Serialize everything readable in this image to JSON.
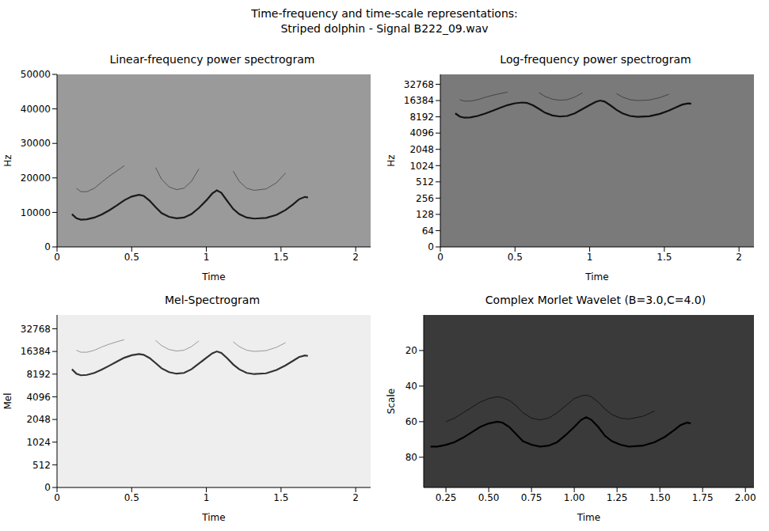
{
  "title": "Time-frequency and time-scale representations:",
  "subtitle": "Striped dolphin - Signal B222_09.wav",
  "chart_data": [
    {
      "type": "line",
      "title": "Linear-frequency power spectrogram",
      "x_label": "Time",
      "y_label": "Hz",
      "x": [
        0.1,
        0.13,
        0.16,
        0.2,
        0.25,
        0.3,
        0.35,
        0.4,
        0.45,
        0.5,
        0.55,
        0.58,
        0.62,
        0.66,
        0.7,
        0.75,
        0.8,
        0.85,
        0.9,
        0.95,
        1.0,
        1.04,
        1.07,
        1.1,
        1.14,
        1.18,
        1.22,
        1.27,
        1.32,
        1.4,
        1.47,
        1.53,
        1.58,
        1.62,
        1.66,
        1.68
      ],
      "series": [
        {
          "color": "#1a1a1a",
          "values": [
            9500,
            8300,
            7900,
            8000,
            8500,
            9400,
            10600,
            12000,
            13500,
            14600,
            15100,
            14800,
            13400,
            11500,
            9800,
            8700,
            8300,
            8500,
            9500,
            11300,
            13500,
            15500,
            16400,
            15700,
            13300,
            11000,
            9500,
            8500,
            8200,
            8400,
            9300,
            10700,
            12300,
            13800,
            14500,
            14300
          ]
        },
        {
          "color": "#555555",
          "values": [
            null,
            17000,
            16000,
            16000,
            17000,
            18800,
            20500,
            22000,
            23500,
            null,
            null,
            null,
            null,
            23000,
            19600,
            17400,
            16600,
            17000,
            19000,
            22600,
            null,
            null,
            null,
            null,
            null,
            22000,
            19000,
            17000,
            16400,
            16800,
            18600,
            21400,
            null,
            null,
            null,
            null
          ]
        }
      ],
      "xlim": [
        0,
        2.1
      ],
      "ylim": [
        0,
        50000
      ],
      "xticks": [
        0,
        0.5,
        1,
        1.5,
        2
      ],
      "yticks": [
        0,
        10000,
        20000,
        30000,
        40000,
        50000
      ]
    },
    {
      "type": "line",
      "title": "Log-frequency power spectrogram",
      "x_label": "Time",
      "y_label": "Hz",
      "log": "y",
      "x": [
        0.1,
        0.13,
        0.16,
        0.2,
        0.25,
        0.3,
        0.35,
        0.4,
        0.45,
        0.5,
        0.55,
        0.58,
        0.62,
        0.66,
        0.7,
        0.75,
        0.8,
        0.85,
        0.9,
        0.95,
        1.0,
        1.04,
        1.07,
        1.1,
        1.14,
        1.18,
        1.22,
        1.27,
        1.32,
        1.4,
        1.47,
        1.53,
        1.58,
        1.62,
        1.66,
        1.68
      ],
      "series": [
        {
          "color": "#111111",
          "values": [
            9500,
            8300,
            7900,
            8000,
            8500,
            9400,
            10600,
            12000,
            13500,
            14600,
            15100,
            14800,
            13400,
            11500,
            9800,
            8700,
            8300,
            8500,
            9500,
            11300,
            13500,
            15500,
            16400,
            15700,
            13300,
            11000,
            9500,
            8500,
            8200,
            8400,
            9300,
            10700,
            12300,
            13800,
            14500,
            14300
          ]
        },
        {
          "color": "#444444",
          "values": [
            null,
            17000,
            16000,
            16000,
            17000,
            18800,
            20500,
            22000,
            23500,
            null,
            null,
            null,
            null,
            23000,
            19600,
            17400,
            16600,
            17000,
            19000,
            22600,
            null,
            null,
            null,
            null,
            null,
            22000,
            19000,
            17000,
            16400,
            16800,
            18600,
            21400,
            null,
            null,
            null,
            null
          ]
        }
      ],
      "xlim": [
        0,
        2.1
      ],
      "ylim": [
        0,
        50000
      ],
      "xticks": [
        0,
        0.5,
        1,
        1.5,
        2
      ],
      "yticks": [
        0,
        64,
        128,
        256,
        512,
        1024,
        2048,
        4096,
        8192,
        16384,
        32768
      ]
    },
    {
      "type": "line",
      "title": "Mel-Spectrogram",
      "x_label": "Time",
      "y_label": "Mel",
      "log": "y",
      "x": [
        0.1,
        0.13,
        0.16,
        0.2,
        0.25,
        0.3,
        0.35,
        0.4,
        0.45,
        0.5,
        0.55,
        0.58,
        0.62,
        0.66,
        0.7,
        0.75,
        0.8,
        0.85,
        0.9,
        0.95,
        1.0,
        1.04,
        1.07,
        1.1,
        1.14,
        1.18,
        1.22,
        1.27,
        1.32,
        1.4,
        1.47,
        1.53,
        1.58,
        1.62,
        1.66,
        1.68
      ],
      "series": [
        {
          "color": "#333333",
          "values": [
            9500,
            8300,
            7900,
            8000,
            8500,
            9400,
            10600,
            12000,
            13500,
            14600,
            15100,
            14800,
            13400,
            11500,
            9800,
            8700,
            8300,
            8500,
            9500,
            11300,
            13500,
            15500,
            16400,
            15700,
            13300,
            11000,
            9500,
            8500,
            8200,
            8400,
            9300,
            10700,
            12300,
            13800,
            14500,
            14300
          ]
        },
        {
          "color": "#999999",
          "values": [
            null,
            17000,
            16000,
            16000,
            17000,
            18800,
            20500,
            22000,
            23500,
            null,
            null,
            null,
            null,
            23000,
            19600,
            17400,
            16600,
            17000,
            19000,
            22600,
            null,
            null,
            null,
            null,
            null,
            22000,
            19000,
            17000,
            16400,
            16800,
            18600,
            21400,
            null,
            null,
            null,
            null
          ]
        }
      ],
      "xlim": [
        0,
        2.1
      ],
      "ylim": [
        0,
        50000
      ],
      "xticks": [
        0,
        0.5,
        1,
        1.5,
        2
      ],
      "yticks": [
        0,
        512,
        1024,
        2048,
        4096,
        8192,
        16384,
        32768
      ]
    },
    {
      "type": "line",
      "title": "Complex Morlet Wavelet (B=3.0,C=4.0)",
      "x_label": "Time",
      "y_label": "Scale",
      "x": [
        0.1,
        0.13,
        0.16,
        0.2,
        0.25,
        0.3,
        0.35,
        0.4,
        0.45,
        0.5,
        0.55,
        0.58,
        0.62,
        0.66,
        0.7,
        0.75,
        0.8,
        0.85,
        0.9,
        0.95,
        1.0,
        1.04,
        1.07,
        1.1,
        1.14,
        1.18,
        1.22,
        1.27,
        1.32,
        1.4,
        1.47,
        1.53,
        1.58,
        1.62,
        1.66,
        1.68
      ],
      "series": [
        {
          "color": "#000000",
          "values": [
            null,
            null,
            74,
            74,
            73,
            71.5,
            69,
            66,
            63,
            61,
            60,
            60.5,
            63,
            67,
            71,
            73,
            74,
            73.5,
            71.5,
            67.5,
            63,
            59,
            57.5,
            59,
            63,
            68,
            71,
            73,
            74,
            73.5,
            71.5,
            68.5,
            65,
            62,
            60.5,
            61
          ]
        },
        {
          "color": "#151515",
          "values": [
            null,
            null,
            null,
            null,
            60,
            58,
            55,
            52,
            49,
            47,
            46,
            46.5,
            48,
            51,
            55,
            58,
            59,
            58,
            55,
            51,
            47,
            45.5,
            45,
            46,
            49,
            53,
            56,
            58,
            58.5,
            57,
            54,
            null,
            null,
            null,
            null,
            null
          ]
        }
      ],
      "xlim": [
        0.12,
        2.05
      ],
      "ylim": [
        97,
        0
      ],
      "xticks": [
        0.25,
        {
          "value": 0.5,
          "label": "0.50"
        },
        0.75,
        {
          "value": 1,
          "label": "1.00"
        },
        1.25,
        {
          "value": 1.5,
          "label": "1.50"
        },
        1.75,
        {
          "value": 2,
          "label": "2.00"
        }
      ],
      "yticks": [
        20,
        40,
        60,
        80
      ]
    }
  ]
}
